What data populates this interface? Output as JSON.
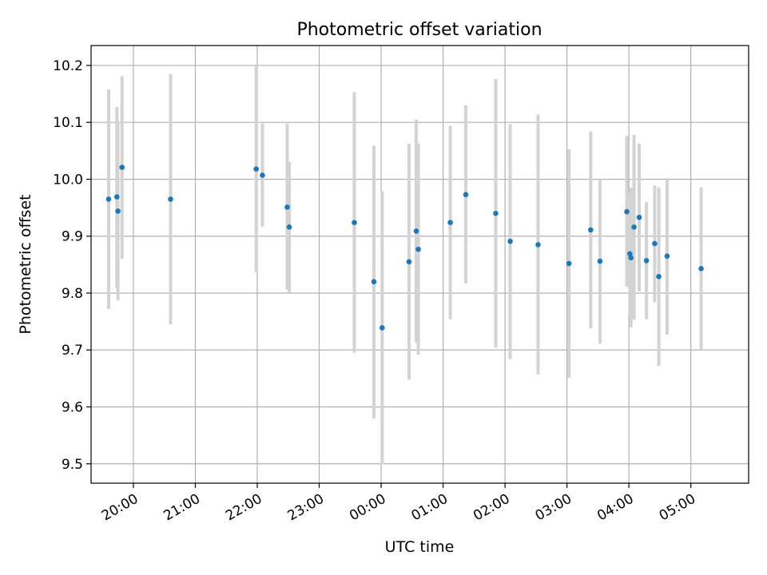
{
  "chart_data": {
    "type": "scatter",
    "title": "Photometric offset variation",
    "xlabel": "UTC time",
    "ylabel": "Photometric offset",
    "xlim": [
      "19:19",
      "05:56"
    ],
    "ylim": [
      9.466,
      10.235
    ],
    "grid": true,
    "x_tick_labels": [
      "20:00",
      "21:00",
      "22:00",
      "23:00",
      "00:00",
      "01:00",
      "02:00",
      "03:00",
      "04:00",
      "05:00"
    ],
    "y_tick_labels": [
      "9.5",
      "9.6",
      "9.7",
      "9.8",
      "9.9",
      "10.0",
      "10.1",
      "10.2"
    ],
    "y_ticks": [
      9.5,
      9.6,
      9.7,
      9.8,
      9.9,
      10.0,
      10.1,
      10.2
    ],
    "colors": {
      "point": "#1f77b4",
      "errorbar": "#d3d3d3",
      "grid": "#b0b0b0"
    },
    "points": [
      {
        "x": "19:36",
        "y": 9.965,
        "ylo": 9.772,
        "yhi": 10.158
      },
      {
        "x": "19:44",
        "y": 9.969,
        "ylo": 9.81,
        "yhi": 10.127
      },
      {
        "x": "19:45",
        "y": 9.944,
        "ylo": 9.787,
        "yhi": 10.102
      },
      {
        "x": "19:49",
        "y": 10.021,
        "ylo": 9.86,
        "yhi": 10.181
      },
      {
        "x": "20:36",
        "y": 9.965,
        "ylo": 9.745,
        "yhi": 10.185
      },
      {
        "x": "21:59",
        "y": 10.018,
        "ylo": 9.837,
        "yhi": 10.2
      },
      {
        "x": "22:05",
        "y": 10.007,
        "ylo": 9.917,
        "yhi": 10.098
      },
      {
        "x": "22:29",
        "y": 9.951,
        "ylo": 9.806,
        "yhi": 10.098
      },
      {
        "x": "22:31",
        "y": 9.916,
        "ylo": 9.801,
        "yhi": 10.031
      },
      {
        "x": "23:34",
        "y": 9.924,
        "ylo": 9.695,
        "yhi": 10.153
      },
      {
        "x": "23:53",
        "y": 9.82,
        "ylo": 9.58,
        "yhi": 10.059
      },
      {
        "x": "00:01",
        "y": 9.739,
        "ylo": 9.499,
        "yhi": 9.979
      },
      {
        "x": "00:27",
        "y": 9.855,
        "ylo": 9.648,
        "yhi": 10.062
      },
      {
        "x": "00:34",
        "y": 9.909,
        "ylo": 9.713,
        "yhi": 10.105
      },
      {
        "x": "00:36",
        "y": 9.877,
        "ylo": 9.692,
        "yhi": 10.063
      },
      {
        "x": "01:07",
        "y": 9.924,
        "ylo": 9.754,
        "yhi": 10.094
      },
      {
        "x": "01:22",
        "y": 9.973,
        "ylo": 9.817,
        "yhi": 10.13
      },
      {
        "x": "01:51",
        "y": 9.94,
        "ylo": 9.704,
        "yhi": 10.176
      },
      {
        "x": "02:05",
        "y": 9.891,
        "ylo": 9.684,
        "yhi": 10.097
      },
      {
        "x": "02:32",
        "y": 9.885,
        "ylo": 9.657,
        "yhi": 10.114
      },
      {
        "x": "03:02",
        "y": 9.852,
        "ylo": 9.651,
        "yhi": 10.053
      },
      {
        "x": "03:23",
        "y": 9.911,
        "ylo": 9.738,
        "yhi": 10.084
      },
      {
        "x": "03:32",
        "y": 9.856,
        "ylo": 9.711,
        "yhi": 10.0
      },
      {
        "x": "03:58",
        "y": 9.943,
        "ylo": 9.811,
        "yhi": 10.076
      },
      {
        "x": "04:01",
        "y": 9.869,
        "ylo": 9.762,
        "yhi": 9.976
      },
      {
        "x": "04:02",
        "y": 9.862,
        "ylo": 9.74,
        "yhi": 9.985
      },
      {
        "x": "04:05",
        "y": 9.916,
        "ylo": 9.753,
        "yhi": 10.078
      },
      {
        "x": "04:10",
        "y": 9.933,
        "ylo": 9.803,
        "yhi": 10.063
      },
      {
        "x": "04:17",
        "y": 9.857,
        "ylo": 9.754,
        "yhi": 9.96
      },
      {
        "x": "04:25",
        "y": 9.887,
        "ylo": 9.784,
        "yhi": 9.989
      },
      {
        "x": "04:29",
        "y": 9.829,
        "ylo": 9.672,
        "yhi": 9.986
      },
      {
        "x": "04:37",
        "y": 9.865,
        "ylo": 9.727,
        "yhi": 10.002
      },
      {
        "x": "05:10",
        "y": 9.843,
        "ylo": 9.7,
        "yhi": 9.986
      }
    ]
  }
}
